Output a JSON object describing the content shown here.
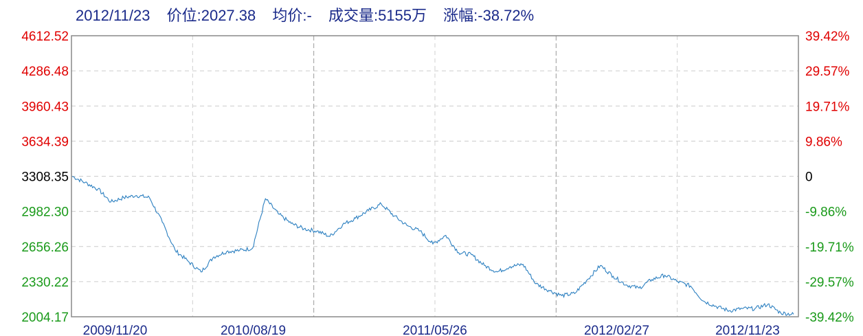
{
  "header": {
    "date": "2012/11/23",
    "price": "价位:2027.38",
    "avg": "均价:-",
    "volume": "成交量:5155万",
    "change": "涨幅:-38.72%"
  },
  "colors": {
    "line": "#2b7fc0",
    "up": "#e00000",
    "down": "#1a9a1a",
    "neutral": "#000000",
    "header": "#1a2a8a",
    "axis": "#888888",
    "grid": "#cccccc"
  },
  "chart_data": {
    "type": "line",
    "title": "",
    "xlabel": "",
    "ylabel": "",
    "ylim": [
      2004.17,
      4612.52
    ],
    "grid": true,
    "base_value": 3308.35,
    "y_left_ticks": [
      "4612.52",
      "4286.48",
      "3960.43",
      "3634.39",
      "3308.35",
      "2982.30",
      "2656.26",
      "2330.22",
      "2004.17"
    ],
    "y_right_ticks": [
      "39.42%",
      "29.57%",
      "19.71%",
      "9.86%",
      "0",
      "-9.86%",
      "-19.71%",
      "-29.57%",
      "-39.42%"
    ],
    "x_tick_labels": [
      "2009/11/20",
      "2010/08/19",
      "2011/05/26",
      "2012/02/27",
      "2012/11/23"
    ],
    "x": [
      "2009/11/20",
      "2009/12/15",
      "2010/01/10",
      "2010/02/05",
      "2010/03/05",
      "2010/03/31",
      "2010/04/15",
      "2010/05/05",
      "2010/05/25",
      "2010/06/15",
      "2010/07/02",
      "2010/07/20",
      "2010/08/05",
      "2010/08/19",
      "2010/09/10",
      "2010/10/05",
      "2010/10/20",
      "2010/11/08",
      "2010/11/30",
      "2010/12/20",
      "2011/01/10",
      "2011/01/25",
      "2011/02/15",
      "2011/03/10",
      "2011/04/05",
      "2011/04/20",
      "2011/05/10",
      "2011/05/26",
      "2011/06/20",
      "2011/07/10",
      "2011/08/05",
      "2011/08/25",
      "2011/09/15",
      "2011/10/10",
      "2011/10/25",
      "2011/11/15",
      "2011/12/05",
      "2011/12/20",
      "2012/01/06",
      "2012/01/20",
      "2012/02/10",
      "2012/02/27",
      "2012/03/15",
      "2012/04/05",
      "2012/04/25",
      "2012/05/10",
      "2012/05/30",
      "2012/06/20",
      "2012/07/10",
      "2012/07/25",
      "2012/08/10",
      "2012/08/31",
      "2012/09/20",
      "2012/10/10",
      "2012/10/25",
      "2012/11/10",
      "2012/11/23"
    ],
    "series": [
      {
        "values": [
          3308,
          3250,
          3190,
          3070,
          3110,
          3130,
          3110,
          2880,
          2620,
          2520,
          2420,
          2560,
          2610,
          2620,
          2640,
          3100,
          2960,
          2870,
          2820,
          2800,
          2750,
          2860,
          2920,
          2990,
          3050,
          2940,
          2850,
          2800,
          2680,
          2760,
          2600,
          2580,
          2480,
          2420,
          2470,
          2490,
          2310,
          2250,
          2200,
          2220,
          2350,
          2480,
          2380,
          2300,
          2270,
          2350,
          2390,
          2330,
          2290,
          2150,
          2100,
          2060,
          2080,
          2080,
          2120,
          2040,
          2027
        ]
      }
    ]
  }
}
